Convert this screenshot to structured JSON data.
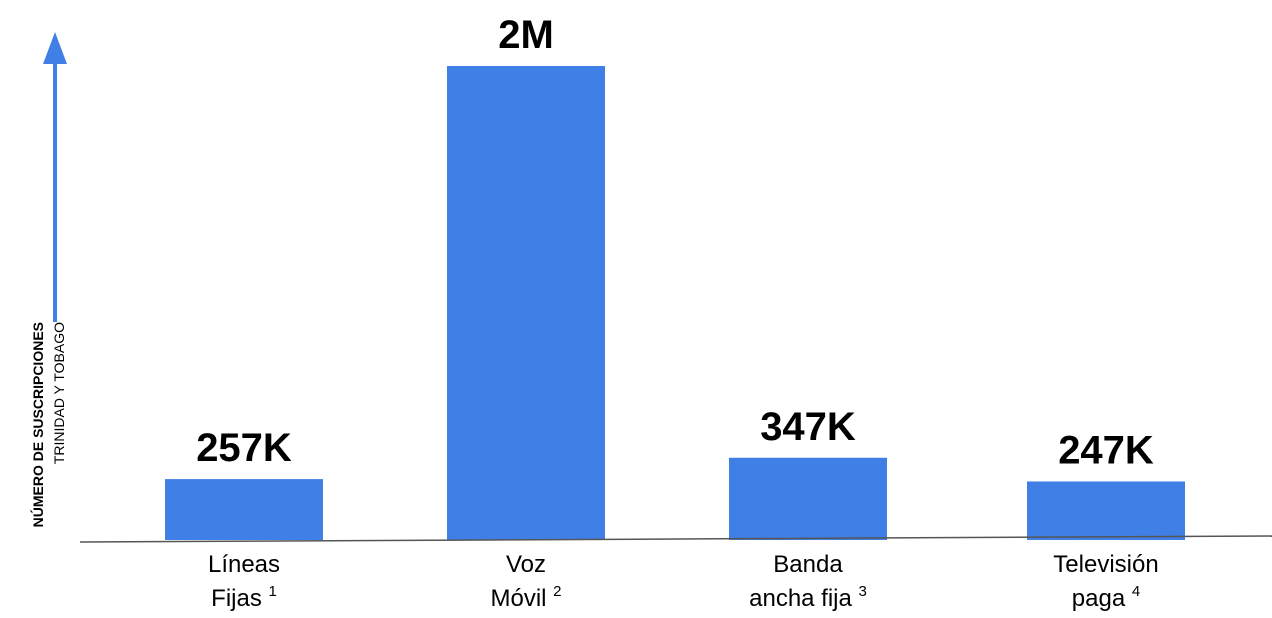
{
  "chart_data": {
    "type": "bar",
    "categories": [
      {
        "line1": "Líneas",
        "line2": "Fijas",
        "note": "1"
      },
      {
        "line1": "Voz",
        "line2": "Móvil",
        "note": "2"
      },
      {
        "line1": "Banda",
        "line2": "ancha fija",
        "note": "3"
      },
      {
        "line1": "Televisión",
        "line2": "paga",
        "note": "4"
      }
    ],
    "values": [
      257000,
      2000000,
      347000,
      247000
    ],
    "value_labels": [
      "257K",
      "2M",
      "347K",
      "247K"
    ],
    "ylabel": "NÚMERO DE SUSCRIPCIONES",
    "ylabel_sub": "TRINIDAD Y TOBAGO",
    "xlabel": "",
    "title": "",
    "ylim": [
      0,
      2000000
    ],
    "grid": false,
    "legend": "none",
    "colors": {
      "bar": "#4080e6",
      "axis_arrow": "#4080e6",
      "baseline": "#555555"
    }
  }
}
